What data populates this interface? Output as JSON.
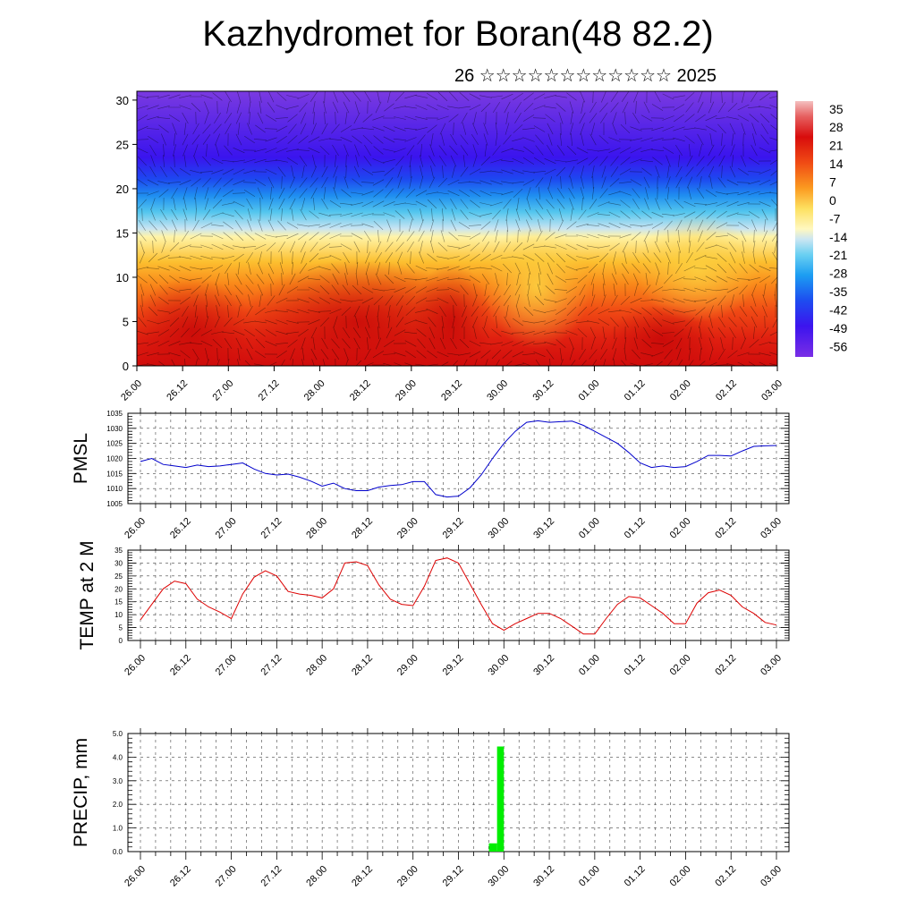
{
  "title": "Kazhydromet for Boran(48 82.2)",
  "subtitle": "26 ☆☆☆☆☆☆☆☆☆☆☆☆ 2025",
  "colors": {
    "pmsl_line": "#0000cc",
    "temp_line": "#dd0000",
    "precip_bar": "#00ee00"
  },
  "chart_data": [
    {
      "type": "heatmap",
      "ylim": [
        0,
        31
      ],
      "y_ticks": [
        "0",
        "5",
        "10",
        "15",
        "20",
        "25",
        "30"
      ],
      "x_ticks": [
        "26.00",
        "26.12",
        "27.00",
        "27.12",
        "28.00",
        "28.12",
        "29.00",
        "29.12",
        "30.00",
        "30.12",
        "01.00",
        "01.12",
        "02.00",
        "02.12",
        "03.00"
      ],
      "colorbar_labels": [
        "35",
        "28",
        "21",
        "14",
        "7",
        "0",
        "-7",
        "-14",
        "-21",
        "-28",
        "-35",
        "-42",
        "-49",
        "-56"
      ],
      "colorbar_range": [
        -60,
        38
      ],
      "grid": false
    },
    {
      "type": "line",
      "ylabel": "PMSL",
      "ylim": [
        1005,
        1035
      ],
      "y_ticks": [
        "1005",
        "1010",
        "1015",
        "1020",
        "1025",
        "1030",
        "1035"
      ],
      "x_ticks": [
        "26.00",
        "26.12",
        "27.00",
        "27.12",
        "28.00",
        "28.12",
        "29.00",
        "29.12",
        "30.00",
        "30.12",
        "01.00",
        "01.12",
        "02.00",
        "02.12",
        "03.00"
      ],
      "grid": true,
      "values": [
        1019,
        1020,
        1018,
        1017.5,
        1017,
        1017.8,
        1017.3,
        1017.5,
        1018,
        1018.5,
        1016.5,
        1015,
        1014.5,
        1014.8,
        1013.8,
        1012.5,
        1010.8,
        1011.8,
        1010,
        1009.3,
        1009.3,
        1010.5,
        1011,
        1011.3,
        1012.3,
        1012.3,
        1008,
        1007.2,
        1007.5,
        1010.2,
        1014.5,
        1020,
        1025,
        1029,
        1032,
        1032.5,
        1032,
        1032.2,
        1032.4,
        1031,
        1029,
        1027,
        1025,
        1022,
        1018.5,
        1017,
        1017.5,
        1017,
        1017.3,
        1019,
        1021,
        1021,
        1020.8,
        1022.5,
        1024,
        1024.2,
        1024.3
      ]
    },
    {
      "type": "line",
      "ylabel": "TEMP at 2 M",
      "ylim": [
        0,
        35
      ],
      "y_ticks": [
        "0",
        "5",
        "10",
        "15",
        "20",
        "25",
        "30",
        "35"
      ],
      "x_ticks": [
        "26.00",
        "26.12",
        "27.00",
        "27.12",
        "28.00",
        "28.12",
        "29.00",
        "29.12",
        "30.00",
        "30.12",
        "01.00",
        "01.12",
        "02.00",
        "02.12",
        "03.00"
      ],
      "grid": true,
      "values": [
        8,
        14,
        20,
        23,
        22,
        16,
        13,
        11,
        8.5,
        18,
        24.5,
        27,
        25,
        19,
        18,
        17.5,
        16.5,
        20,
        30,
        30.5,
        29,
        21.5,
        16,
        14,
        13.5,
        21,
        31,
        32,
        30,
        22,
        14,
        6.5,
        4,
        6.5,
        8.5,
        10.5,
        10.5,
        8.5,
        5.5,
        2.5,
        2.5,
        8.5,
        14,
        17,
        16.5,
        13.5,
        10.5,
        6.5,
        6.5,
        14.5,
        18.5,
        19.5,
        17.5,
        13,
        10.5,
        7,
        6
      ]
    },
    {
      "type": "bar",
      "ylabel": "PRECIP, mm",
      "ylim": [
        0,
        5
      ],
      "y_ticks": [
        "0.0",
        "1.0",
        "2.0",
        "3.0",
        "4.0",
        "5.0"
      ],
      "x_ticks": [
        "26.00",
        "26.12",
        "27.00",
        "27.12",
        "28.00",
        "28.12",
        "29.00",
        "29.12",
        "30.00",
        "30.12",
        "01.00",
        "01.12",
        "02.00",
        "02.12",
        "03.00"
      ],
      "grid": true,
      "bars": [
        {
          "start": 7.67,
          "end": 7.85,
          "value": 0.35
        },
        {
          "start": 7.85,
          "end": 8.0,
          "value": 4.45
        }
      ]
    }
  ]
}
